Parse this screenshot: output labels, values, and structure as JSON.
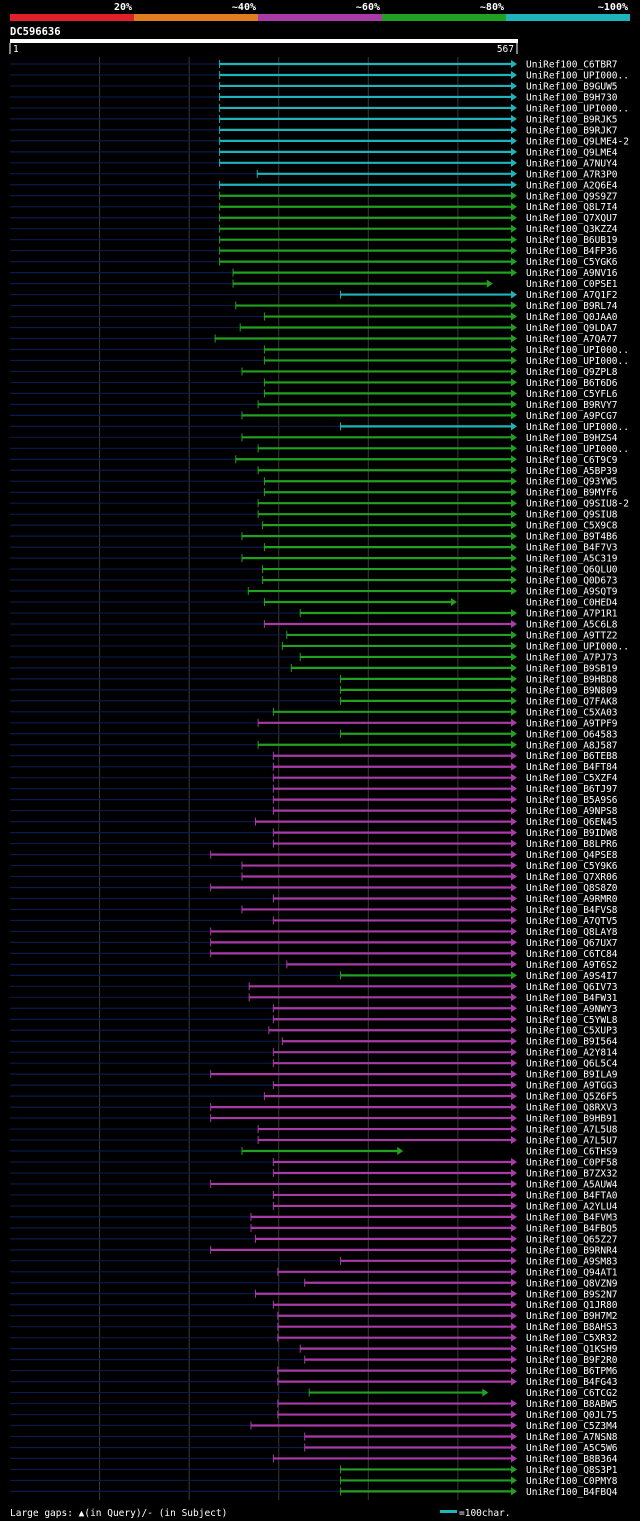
{
  "colors": {
    "bg": "#000000",
    "cyan": "#1fb4bc",
    "green": "#21a121",
    "purple": "#a83ba8",
    "orange": "#e07d20",
    "red": "#e0202a",
    "axis": "#ffffff",
    "grid": "#3a3a3a",
    "leader": "#0b1a4a"
  },
  "legend": {
    "scale": [
      {
        "label": "20%",
        "color": "#e0202a"
      },
      {
        "label": "~40%",
        "color": "#e07d20"
      },
      {
        "label": "~60%",
        "color": "#a83ba8"
      },
      {
        "label": "~80%",
        "color": "#21a121"
      },
      {
        "label": "~100%",
        "color": "#1fb4bc"
      }
    ]
  },
  "chart_data": {
    "type": "alignment",
    "title": "DC596636",
    "axis_start": "1",
    "axis_end": "567",
    "xlim": [
      1,
      567
    ],
    "footer_gaps": "Large gaps: ▲(in Query)/- (in Subject)",
    "footer_scale": "=100char.",
    "hits": [
      {
        "name": "UniRef100_C6TBR7",
        "start": 235,
        "end": 567,
        "color": "cyan"
      },
      {
        "name": "UniRef100_UPI000..",
        "start": 235,
        "end": 567,
        "color": "cyan"
      },
      {
        "name": "UniRef100_B9GUW5",
        "start": 235,
        "end": 567,
        "color": "cyan"
      },
      {
        "name": "UniRef100_B9H730",
        "start": 235,
        "end": 567,
        "color": "cyan"
      },
      {
        "name": "UniRef100_UPI000..",
        "start": 235,
        "end": 567,
        "color": "cyan"
      },
      {
        "name": "UniRef100_B9RJK5",
        "start": 235,
        "end": 567,
        "color": "cyan"
      },
      {
        "name": "UniRef100_B9RJK7",
        "start": 235,
        "end": 567,
        "color": "cyan"
      },
      {
        "name": "UniRef100_Q9LME4-2",
        "start": 235,
        "end": 567,
        "color": "cyan"
      },
      {
        "name": "UniRef100_Q9LME4",
        "start": 235,
        "end": 567,
        "color": "cyan"
      },
      {
        "name": "UniRef100_A7NUY4",
        "start": 235,
        "end": 567,
        "color": "cyan"
      },
      {
        "name": "UniRef100_A7R3P0",
        "start": 277,
        "end": 567,
        "color": "cyan"
      },
      {
        "name": "UniRef100_A2Q6E4",
        "start": 235,
        "end": 567,
        "color": "cyan"
      },
      {
        "name": "UniRef100_Q9S9Z7",
        "start": 235,
        "end": 567,
        "color": "green"
      },
      {
        "name": "UniRef100_Q8L7I4",
        "start": 235,
        "end": 567,
        "color": "green"
      },
      {
        "name": "UniRef100_Q7XQU7",
        "start": 235,
        "end": 567,
        "color": "green"
      },
      {
        "name": "UniRef100_Q3KZZ4",
        "start": 235,
        "end": 567,
        "color": "green"
      },
      {
        "name": "UniRef100_B6UB19",
        "start": 235,
        "end": 567,
        "color": "green"
      },
      {
        "name": "UniRef100_B4FP36",
        "start": 235,
        "end": 567,
        "color": "green"
      },
      {
        "name": "UniRef100_C5YGK6",
        "start": 235,
        "end": 567,
        "color": "green"
      },
      {
        "name": "UniRef100_A9NV16",
        "start": 250,
        "end": 567,
        "color": "green"
      },
      {
        "name": "UniRef100_C0PSE1",
        "start": 250,
        "end": 540,
        "color": "green"
      },
      {
        "name": "UniRef100_A7Q1F2",
        "start": 370,
        "end": 567,
        "color": "cyan"
      },
      {
        "name": "UniRef100_B9RL74",
        "start": 253,
        "end": 567,
        "color": "green"
      },
      {
        "name": "UniRef100_Q0JAA0",
        "start": 285,
        "end": 567,
        "color": "green"
      },
      {
        "name": "UniRef100_Q9LDA7",
        "start": 258,
        "end": 567,
        "color": "green"
      },
      {
        "name": "UniRef100_A7QA77",
        "start": 230,
        "end": 567,
        "color": "green"
      },
      {
        "name": "UniRef100_UPI000..",
        "start": 285,
        "end": 567,
        "color": "green"
      },
      {
        "name": "UniRef100_UPI000..",
        "start": 285,
        "end": 567,
        "color": "green"
      },
      {
        "name": "UniRef100_Q9ZPL8",
        "start": 260,
        "end": 567,
        "color": "green"
      },
      {
        "name": "UniRef100_B6T6D6",
        "start": 285,
        "end": 567,
        "color": "green"
      },
      {
        "name": "UniRef100_C5YFL6",
        "start": 285,
        "end": 567,
        "color": "green"
      },
      {
        "name": "UniRef100_B9RVY7",
        "start": 278,
        "end": 567,
        "color": "green"
      },
      {
        "name": "UniRef100_A9PCG7",
        "start": 260,
        "end": 567,
        "color": "green"
      },
      {
        "name": "UniRef100_UPI000..",
        "start": 370,
        "end": 567,
        "color": "cyan"
      },
      {
        "name": "UniRef100_B9HZS4",
        "start": 260,
        "end": 567,
        "color": "green"
      },
      {
        "name": "UniRef100_UPI000..",
        "start": 278,
        "end": 567,
        "color": "green"
      },
      {
        "name": "UniRef100_C6T9C9",
        "start": 253,
        "end": 567,
        "color": "green"
      },
      {
        "name": "UniRef100_A5BP39",
        "start": 278,
        "end": 567,
        "color": "green"
      },
      {
        "name": "UniRef100_Q93YW5",
        "start": 285,
        "end": 567,
        "color": "green"
      },
      {
        "name": "UniRef100_B9MYF6",
        "start": 285,
        "end": 567,
        "color": "green"
      },
      {
        "name": "UniRef100_Q9SIU8-2",
        "start": 278,
        "end": 567,
        "color": "green"
      },
      {
        "name": "UniRef100_Q9SIU8",
        "start": 278,
        "end": 567,
        "color": "green"
      },
      {
        "name": "UniRef100_C5X9C8",
        "start": 283,
        "end": 567,
        "color": "green"
      },
      {
        "name": "UniRef100_B9T4B6",
        "start": 260,
        "end": 567,
        "color": "green"
      },
      {
        "name": "UniRef100_B4F7V3",
        "start": 285,
        "end": 567,
        "color": "green"
      },
      {
        "name": "UniRef100_A5C319",
        "start": 260,
        "end": 567,
        "color": "green"
      },
      {
        "name": "UniRef100_Q6QLU0",
        "start": 283,
        "end": 567,
        "color": "green"
      },
      {
        "name": "UniRef100_Q0D673",
        "start": 283,
        "end": 567,
        "color": "green"
      },
      {
        "name": "UniRef100_A9SQT9",
        "start": 267,
        "end": 567,
        "color": "green"
      },
      {
        "name": "UniRef100_C0HED4",
        "start": 285,
        "end": 500,
        "color": "green"
      },
      {
        "name": "UniRef100_A7P1R1",
        "start": 325,
        "end": 567,
        "color": "green"
      },
      {
        "name": "UniRef100_A5C6L8",
        "start": 285,
        "end": 567,
        "color": "purple"
      },
      {
        "name": "UniRef100_A9TTZ2",
        "start": 310,
        "end": 567,
        "color": "green"
      },
      {
        "name": "UniRef100_UPI000..",
        "start": 305,
        "end": 567,
        "color": "green"
      },
      {
        "name": "UniRef100_A7PJ73",
        "start": 325,
        "end": 567,
        "color": "green"
      },
      {
        "name": "UniRef100_B9SB19",
        "start": 315,
        "end": 567,
        "color": "green"
      },
      {
        "name": "UniRef100_B9HBD8",
        "start": 370,
        "end": 567,
        "color": "green"
      },
      {
        "name": "UniRef100_B9N809",
        "start": 370,
        "end": 567,
        "color": "green"
      },
      {
        "name": "UniRef100_Q7FAK8",
        "start": 370,
        "end": 567,
        "color": "green"
      },
      {
        "name": "UniRef100_C5XA03",
        "start": 295,
        "end": 567,
        "color": "green"
      },
      {
        "name": "UniRef100_A9TPF9",
        "start": 278,
        "end": 567,
        "color": "purple"
      },
      {
        "name": "UniRef100_O64583",
        "start": 370,
        "end": 567,
        "color": "green"
      },
      {
        "name": "UniRef100_A8J587",
        "start": 278,
        "end": 567,
        "color": "green"
      },
      {
        "name": "UniRef100_B6TEB8",
        "start": 295,
        "end": 567,
        "color": "purple"
      },
      {
        "name": "UniRef100_B4FT84",
        "start": 295,
        "end": 567,
        "color": "purple"
      },
      {
        "name": "UniRef100_C5XZF4",
        "start": 295,
        "end": 567,
        "color": "purple"
      },
      {
        "name": "UniRef100_B6TJ97",
        "start": 295,
        "end": 567,
        "color": "purple"
      },
      {
        "name": "UniRef100_B5A9S6",
        "start": 295,
        "end": 567,
        "color": "purple"
      },
      {
        "name": "UniRef100_A9NPS8",
        "start": 295,
        "end": 567,
        "color": "purple"
      },
      {
        "name": "UniRef100_Q6EN45",
        "start": 275,
        "end": 567,
        "color": "purple"
      },
      {
        "name": "UniRef100_B9IDW8",
        "start": 295,
        "end": 567,
        "color": "purple"
      },
      {
        "name": "UniRef100_B8LPR6",
        "start": 295,
        "end": 567,
        "color": "purple"
      },
      {
        "name": "UniRef100_Q4PSE8",
        "start": 225,
        "end": 567,
        "color": "purple"
      },
      {
        "name": "UniRef100_C5Y9K6",
        "start": 260,
        "end": 567,
        "color": "purple"
      },
      {
        "name": "UniRef100_Q7XR06",
        "start": 260,
        "end": 567,
        "color": "purple"
      },
      {
        "name": "UniRef100_Q8S8Z0",
        "start": 225,
        "end": 567,
        "color": "purple"
      },
      {
        "name": "UniRef100_A9RMR0",
        "start": 295,
        "end": 567,
        "color": "purple"
      },
      {
        "name": "UniRef100_B4FVS8",
        "start": 260,
        "end": 567,
        "color": "purple"
      },
      {
        "name": "UniRef100_A7QTV5",
        "start": 295,
        "end": 567,
        "color": "purple"
      },
      {
        "name": "UniRef100_Q8LAY8",
        "start": 225,
        "end": 567,
        "color": "purple"
      },
      {
        "name": "UniRef100_Q67UX7",
        "start": 225,
        "end": 567,
        "color": "purple"
      },
      {
        "name": "UniRef100_C6TC84",
        "start": 225,
        "end": 567,
        "color": "purple"
      },
      {
        "name": "UniRef100_A9T6S2",
        "start": 310,
        "end": 567,
        "color": "purple"
      },
      {
        "name": "UniRef100_A9S4I7",
        "start": 370,
        "end": 567,
        "color": "green"
      },
      {
        "name": "UniRef100_Q6IV73",
        "start": 268,
        "end": 567,
        "color": "purple"
      },
      {
        "name": "UniRef100_B4FW31",
        "start": 268,
        "end": 567,
        "color": "purple"
      },
      {
        "name": "UniRef100_A9NWY3",
        "start": 295,
        "end": 567,
        "color": "purple"
      },
      {
        "name": "UniRef100_C5YWL8",
        "start": 295,
        "end": 567,
        "color": "purple"
      },
      {
        "name": "UniRef100_C5XUP3",
        "start": 290,
        "end": 567,
        "color": "purple"
      },
      {
        "name": "UniRef100_B9I564",
        "start": 305,
        "end": 567,
        "color": "purple"
      },
      {
        "name": "UniRef100_A2Y814",
        "start": 295,
        "end": 567,
        "color": "purple"
      },
      {
        "name": "UniRef100_Q6L5C4",
        "start": 295,
        "end": 567,
        "color": "purple"
      },
      {
        "name": "UniRef100_B9ILA9",
        "start": 225,
        "end": 567,
        "color": "purple"
      },
      {
        "name": "UniRef100_A9TGG3",
        "start": 295,
        "end": 567,
        "color": "purple"
      },
      {
        "name": "UniRef100_Q5Z6F5",
        "start": 285,
        "end": 567,
        "color": "purple"
      },
      {
        "name": "UniRef100_Q8RXV3",
        "start": 225,
        "end": 567,
        "color": "purple"
      },
      {
        "name": "UniRef100_B9HB91",
        "start": 225,
        "end": 567,
        "color": "purple"
      },
      {
        "name": "UniRef100_A7L5U8",
        "start": 278,
        "end": 567,
        "color": "purple"
      },
      {
        "name": "UniRef100_A7L5U7",
        "start": 278,
        "end": 567,
        "color": "purple"
      },
      {
        "name": "UniRef100_C6THS9",
        "start": 260,
        "end": 440,
        "color": "green"
      },
      {
        "name": "UniRef100_C0PF58",
        "start": 295,
        "end": 567,
        "color": "purple"
      },
      {
        "name": "UniRef100_B7ZX32",
        "start": 295,
        "end": 567,
        "color": "purple"
      },
      {
        "name": "UniRef100_A5AUW4",
        "start": 225,
        "end": 567,
        "color": "purple"
      },
      {
        "name": "UniRef100_B4FTA0",
        "start": 295,
        "end": 567,
        "color": "purple"
      },
      {
        "name": "UniRef100_A2YLU4",
        "start": 295,
        "end": 567,
        "color": "purple"
      },
      {
        "name": "UniRef100_B4FVM3",
        "start": 270,
        "end": 567,
        "color": "purple"
      },
      {
        "name": "UniRef100_B4FBQ5",
        "start": 270,
        "end": 567,
        "color": "purple"
      },
      {
        "name": "UniRef100_Q65Z27",
        "start": 275,
        "end": 567,
        "color": "purple"
      },
      {
        "name": "UniRef100_B9RNR4",
        "start": 225,
        "end": 567,
        "color": "purple"
      },
      {
        "name": "UniRef100_A9SM83",
        "start": 370,
        "end": 567,
        "color": "purple"
      },
      {
        "name": "UniRef100_Q94AT1",
        "start": 300,
        "end": 567,
        "color": "purple"
      },
      {
        "name": "UniRef100_Q8VZN9",
        "start": 330,
        "end": 567,
        "color": "purple"
      },
      {
        "name": "UniRef100_B9S2N7",
        "start": 275,
        "end": 567,
        "color": "purple"
      },
      {
        "name": "UniRef100_Q1JR80",
        "start": 295,
        "end": 567,
        "color": "purple"
      },
      {
        "name": "UniRef100_B9H7M2",
        "start": 300,
        "end": 567,
        "color": "purple"
      },
      {
        "name": "UniRef100_B8AHS3",
        "start": 300,
        "end": 567,
        "color": "purple"
      },
      {
        "name": "UniRef100_C5XR32",
        "start": 300,
        "end": 567,
        "color": "purple"
      },
      {
        "name": "UniRef100_Q1KSH9",
        "start": 325,
        "end": 567,
        "color": "purple"
      },
      {
        "name": "UniRef100_B9F2R0",
        "start": 330,
        "end": 567,
        "color": "purple"
      },
      {
        "name": "UniRef100_B6TPM6",
        "start": 300,
        "end": 567,
        "color": "purple"
      },
      {
        "name": "UniRef100_B4FG43",
        "start": 300,
        "end": 567,
        "color": "purple"
      },
      {
        "name": "UniRef100_C6TCG2",
        "start": 335,
        "end": 535,
        "color": "green"
      },
      {
        "name": "UniRef100_B8ABW5",
        "start": 300,
        "end": 567,
        "color": "purple"
      },
      {
        "name": "UniRef100_Q0JL75",
        "start": 300,
        "end": 567,
        "color": "purple"
      },
      {
        "name": "UniRef100_C5Z3M4",
        "start": 270,
        "end": 567,
        "color": "purple"
      },
      {
        "name": "UniRef100_A7NSN8",
        "start": 330,
        "end": 567,
        "color": "purple"
      },
      {
        "name": "UniRef100_A5C5W6",
        "start": 330,
        "end": 567,
        "color": "purple"
      },
      {
        "name": "UniRef100_B8B364",
        "start": 295,
        "end": 567,
        "color": "purple"
      },
      {
        "name": "UniRef100_Q8S3P1",
        "start": 370,
        "end": 567,
        "color": "green"
      },
      {
        "name": "UniRef100_C0PMY8",
        "start": 370,
        "end": 567,
        "color": "green"
      },
      {
        "name": "UniRef100_B4FBQ4",
        "start": 370,
        "end": 567,
        "color": "green"
      }
    ]
  }
}
